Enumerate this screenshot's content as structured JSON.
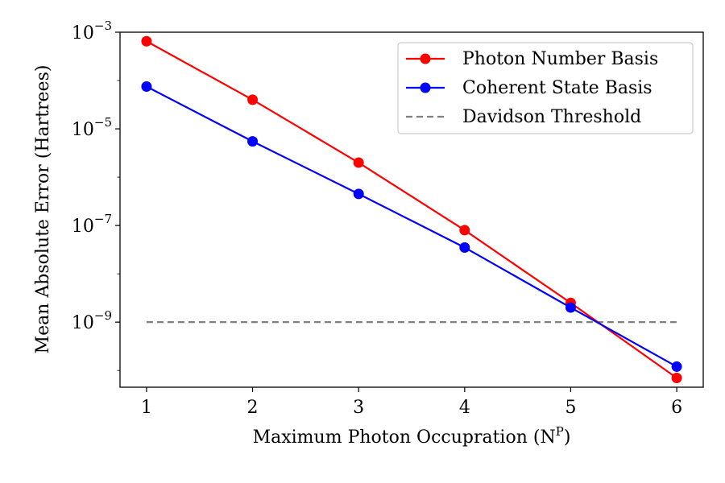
{
  "chart_data": {
    "type": "line",
    "x": [
      1,
      2,
      3,
      4,
      5,
      6
    ],
    "xlabel": "Maximum Photon Occupration (N",
    "xlabel_sup": "P",
    "xlabel_close": ")",
    "ylabel": "Mean Absolute Error (Hartrees)",
    "yscale": "log",
    "xlim": [
      0.75,
      6.25
    ],
    "ylim": [
      4.5e-11,
      0.001
    ],
    "x_ticks": [
      {
        "value": 1,
        "label": "1"
      },
      {
        "value": 2,
        "label": "2"
      },
      {
        "value": 3,
        "label": "3"
      },
      {
        "value": 4,
        "label": "4"
      },
      {
        "value": 5,
        "label": "5"
      },
      {
        "value": 6,
        "label": "6"
      }
    ],
    "y_ticks": [
      {
        "value": 0.001,
        "base": "10",
        "exp": "−3"
      },
      {
        "value": 1e-05,
        "base": "10",
        "exp": "−5"
      },
      {
        "value": 1e-07,
        "base": "10",
        "exp": "−7"
      },
      {
        "value": 1e-09,
        "base": "10",
        "exp": "−9"
      }
    ],
    "grid": false,
    "legend_position": "top-right",
    "series": [
      {
        "name": "Photon Number Basis",
        "color": "#ff0000",
        "style": "solid",
        "marker": "circle",
        "values": [
          0.00065,
          4e-05,
          2e-06,
          8e-08,
          2.5e-09,
          7e-11
        ]
      },
      {
        "name": "Coherent State Basis",
        "color": "#0000ff",
        "style": "solid",
        "marker": "circle",
        "values": [
          7.5e-05,
          5.5e-06,
          4.5e-07,
          3.5e-08,
          2e-09,
          1.2e-10
        ]
      },
      {
        "name": "Davidson Threshold",
        "color": "#808080",
        "style": "dashed",
        "marker": "none",
        "values": [
          1e-09,
          1e-09,
          1e-09,
          1e-09,
          1e-09,
          1e-09
        ]
      }
    ]
  }
}
